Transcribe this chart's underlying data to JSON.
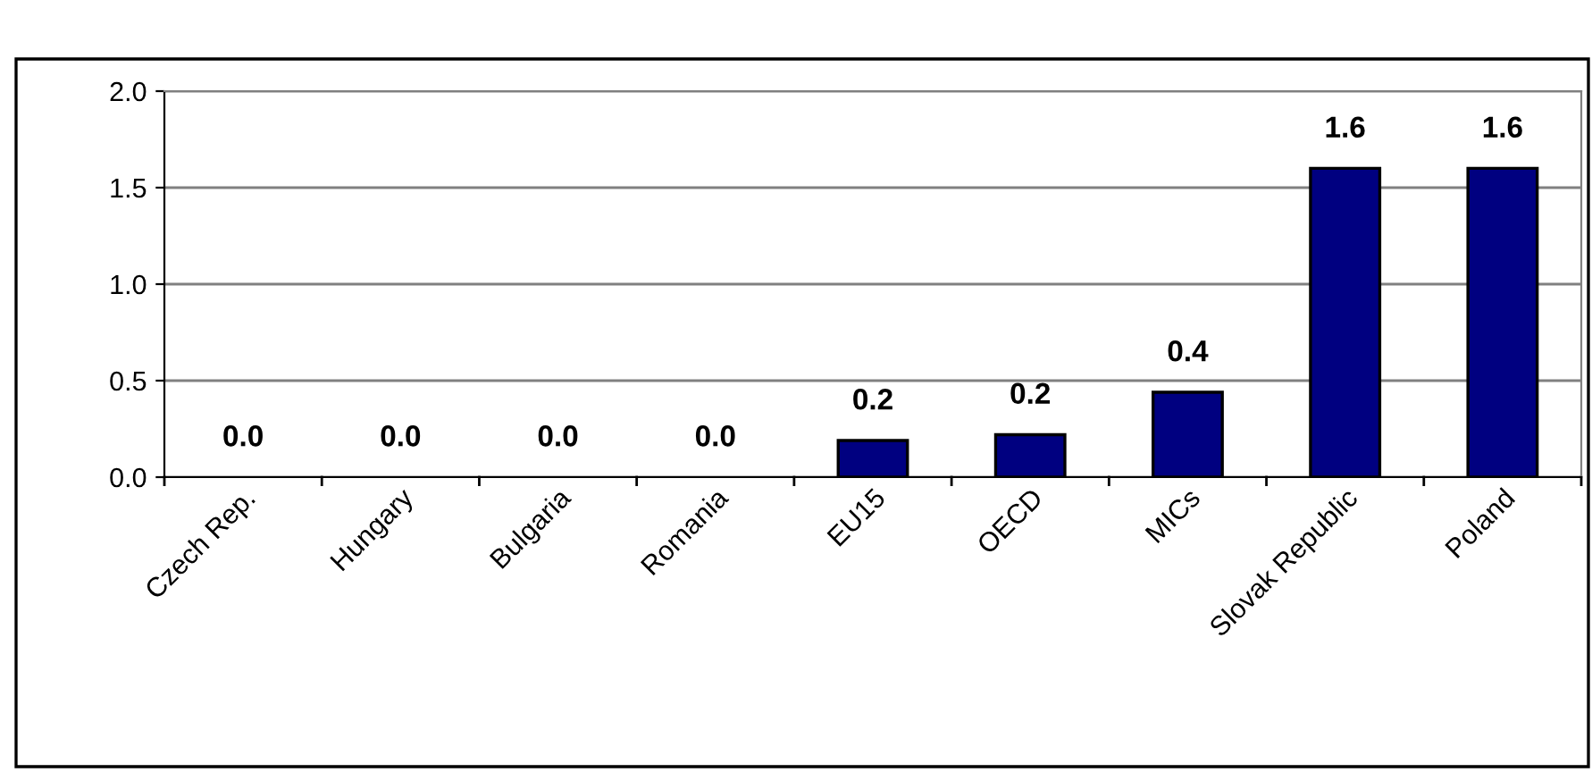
{
  "chart_data": {
    "type": "bar",
    "categories": [
      "Czech Rep.",
      "Hungary",
      "Bulgaria",
      "Romania",
      "EU15",
      "OECD",
      "MICs",
      "Slovak Republic",
      "Poland"
    ],
    "values": [
      0,
      0,
      0,
      0,
      0.19,
      0.22,
      0.44,
      1.6,
      1.6
    ],
    "value_labels": [
      "0.0",
      "0.0",
      "0.0",
      "0.0",
      "0.2",
      "0.2",
      "0.4",
      "1.6",
      "1.6"
    ],
    "color": "#000080",
    "ylim": [
      0,
      2
    ],
    "yticks": [
      {
        "value": 0,
        "label": "0.0"
      },
      {
        "value": 0.5,
        "label": "0.5"
      },
      {
        "value": 1,
        "label": "1.0"
      },
      {
        "value": 1.5,
        "label": "1.5"
      },
      {
        "value": 2,
        "label": "2.0"
      }
    ],
    "grid": "y",
    "legend": false
  }
}
